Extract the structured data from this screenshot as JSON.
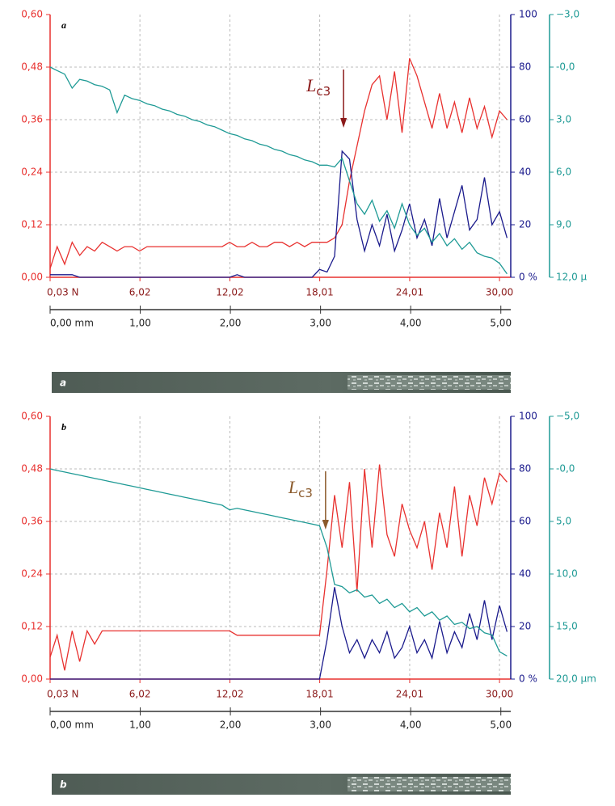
{
  "chart_data": [
    {
      "type": "line",
      "panel_label": "a",
      "strip_label": "a",
      "grid": true,
      "annotation": {
        "label": "L",
        "subscript": "c3",
        "x": 19.6,
        "color": "#8b1a1a"
      },
      "xlim": [
        0.03,
        30.75
      ],
      "xticks": [
        {
          "value": 0.03,
          "label": "0,03 N"
        },
        {
          "value": 6.02,
          "label": "6,02"
        },
        {
          "value": 12.02,
          "label": "12,02"
        },
        {
          "value": 18.01,
          "label": "18,01"
        },
        {
          "value": 24.01,
          "label": "24,01"
        },
        {
          "value": 30.0,
          "label": "30,00"
        }
      ],
      "x2lim": [
        0,
        5.11
      ],
      "x2ticks": [
        {
          "value": 0,
          "label": "0,00 mm"
        },
        {
          "value": 1,
          "label": "1,00"
        },
        {
          "value": 2,
          "label": "2,00"
        },
        {
          "value": 3,
          "label": "3,00"
        },
        {
          "value": 4,
          "label": "4,00"
        },
        {
          "value": 5,
          "label": "5,00"
        }
      ],
      "ylim": [
        0,
        0.6
      ],
      "yticks": [
        {
          "value": 0,
          "label": "0,00"
        },
        {
          "value": 0.12,
          "label": "0,12"
        },
        {
          "value": 0.24,
          "label": "0,24"
        },
        {
          "value": 0.36,
          "label": "0,36"
        },
        {
          "value": 0.48,
          "label": "0,48"
        },
        {
          "value": 0.6,
          "label": "0,60"
        }
      ],
      "y2lim": [
        0,
        100
      ],
      "y2ticks": [
        {
          "value": 0,
          "label": "0 %"
        },
        20,
        40,
        60,
        80,
        100
      ],
      "y3lim": [
        12,
        -3
      ],
      "y3ticks": [
        {
          "value": -3,
          "label": "−3,0"
        },
        {
          "value": 0,
          "label": "-0,0"
        },
        {
          "value": 3,
          "label": "3,0"
        },
        {
          "value": 6,
          "label": "6,0"
        },
        {
          "value": 9,
          "label": "9,0"
        },
        {
          "value": 12,
          "label": "12,0 µ"
        }
      ],
      "axis_colors": {
        "y": "#e8312f",
        "y2": "#1a1a8c",
        "y3": "#1e9a95"
      },
      "x": [
        0.03,
        0.5,
        1,
        1.5,
        2,
        2.5,
        3,
        3.5,
        4,
        4.5,
        5,
        5.5,
        6,
        6.5,
        7,
        7.5,
        8,
        8.5,
        9,
        9.5,
        10,
        10.5,
        11,
        11.5,
        12,
        12.5,
        13,
        13.5,
        14,
        14.5,
        15,
        15.5,
        16,
        16.5,
        17,
        17.5,
        18,
        18.5,
        19,
        19.5,
        20,
        20.5,
        21,
        21.5,
        22,
        22.5,
        23,
        23.5,
        24,
        24.5,
        25,
        25.5,
        26,
        26.5,
        27,
        27.5,
        28,
        28.5,
        29,
        29.5,
        30,
        30.5
      ],
      "series": [
        {
          "color": "#e8312f",
          "axis": "y",
          "values": [
            0.02,
            0.07,
            0.03,
            0.08,
            0.05,
            0.07,
            0.06,
            0.08,
            0.07,
            0.06,
            0.07,
            0.07,
            0.06,
            0.07,
            0.07,
            0.07,
            0.07,
            0.07,
            0.07,
            0.07,
            0.07,
            0.07,
            0.07,
            0.07,
            0.08,
            0.07,
            0.07,
            0.08,
            0.07,
            0.07,
            0.08,
            0.08,
            0.07,
            0.08,
            0.07,
            0.08,
            0.08,
            0.08,
            0.09,
            0.12,
            0.22,
            0.3,
            0.38,
            0.44,
            0.46,
            0.36,
            0.47,
            0.33,
            0.5,
            0.46,
            0.4,
            0.34,
            0.42,
            0.34,
            0.4,
            0.33,
            0.41,
            0.34,
            0.39,
            0.32,
            0.38,
            0.36
          ]
        },
        {
          "color": "#1a1a8c",
          "axis": "y2",
          "values": [
            1,
            1,
            1,
            1,
            0,
            0,
            0,
            0,
            0,
            0,
            0,
            0,
            0,
            0,
            0,
            0,
            0,
            0,
            0,
            0,
            0,
            0,
            0,
            0,
            0,
            1,
            0,
            0,
            0,
            0,
            0,
            0,
            0,
            0,
            0,
            0,
            3,
            2,
            8,
            48,
            45,
            22,
            10,
            20,
            12,
            24,
            10,
            18,
            28,
            15,
            22,
            12,
            30,
            15,
            25,
            35,
            18,
            22,
            38,
            20,
            25,
            15
          ]
        },
        {
          "color": "#1e9a95",
          "axis": "y3",
          "values": [
            0.0,
            0.2,
            0.4,
            1.2,
            0.7,
            0.8,
            1.0,
            1.1,
            1.3,
            2.6,
            1.6,
            1.8,
            1.9,
            2.1,
            2.2,
            2.4,
            2.5,
            2.7,
            2.8,
            3.0,
            3.1,
            3.3,
            3.4,
            3.6,
            3.8,
            3.9,
            4.1,
            4.2,
            4.4,
            4.5,
            4.7,
            4.8,
            5.0,
            5.1,
            5.3,
            5.4,
            5.6,
            5.6,
            5.7,
            5.2,
            6.5,
            7.8,
            8.4,
            7.6,
            8.8,
            8.2,
            9.2,
            7.8,
            9.0,
            9.6,
            9.2,
            10.0,
            9.5,
            10.2,
            9.8,
            10.4,
            10.0,
            10.6,
            10.8,
            10.9,
            11.2,
            11.8
          ]
        }
      ]
    },
    {
      "type": "line",
      "panel_label": "b",
      "strip_label": "b",
      "grid": true,
      "annotation": {
        "label": "L",
        "subscript": "c3",
        "x": 18.4,
        "color": "#8b5a2b"
      },
      "xlim": [
        0.03,
        30.75
      ],
      "xticks": [
        {
          "value": 0.03,
          "label": "0,03 N"
        },
        {
          "value": 6.02,
          "label": "6,02"
        },
        {
          "value": 12.02,
          "label": "12,02"
        },
        {
          "value": 18.01,
          "label": "18,01"
        },
        {
          "value": 24.01,
          "label": "24,01"
        },
        {
          "value": 30.0,
          "label": "30,00"
        }
      ],
      "x2lim": [
        0,
        5.11
      ],
      "x2ticks": [
        {
          "value": 0,
          "label": "0,00 mm"
        },
        {
          "value": 1,
          "label": "1,00"
        },
        {
          "value": 2,
          "label": "2,00"
        },
        {
          "value": 3,
          "label": "3,00"
        },
        {
          "value": 4,
          "label": "4,00"
        },
        {
          "value": 5,
          "label": "5,00"
        }
      ],
      "ylim": [
        0,
        0.6
      ],
      "yticks": [
        {
          "value": 0,
          "label": "0,00"
        },
        {
          "value": 0.12,
          "label": "0,12"
        },
        {
          "value": 0.24,
          "label": "0,24"
        },
        {
          "value": 0.36,
          "label": "0,36"
        },
        {
          "value": 0.48,
          "label": "0,48"
        },
        {
          "value": 0.6,
          "label": "0,60"
        }
      ],
      "y2lim": [
        0,
        100
      ],
      "y2ticks": [
        {
          "value": 0,
          "label": "0 %"
        },
        20,
        40,
        60,
        80,
        100
      ],
      "y3lim": [
        20,
        -5
      ],
      "y3ticks": [
        {
          "value": -5,
          "label": "−5,0"
        },
        {
          "value": 0,
          "label": "-0,0"
        },
        {
          "value": 5,
          "label": "5,0"
        },
        {
          "value": 10,
          "label": "10,0"
        },
        {
          "value": 15,
          "label": "15,0"
        },
        {
          "value": 20,
          "label": "20,0 µm"
        }
      ],
      "axis_colors": {
        "y": "#e8312f",
        "y2": "#1a1a8c",
        "y3": "#1e9a95"
      },
      "x": [
        0.03,
        0.5,
        1,
        1.5,
        2,
        2.5,
        3,
        3.5,
        4,
        4.5,
        5,
        5.5,
        6,
        6.5,
        7,
        7.5,
        8,
        8.5,
        9,
        9.5,
        10,
        10.5,
        11,
        11.5,
        12,
        12.5,
        13,
        13.5,
        14,
        14.5,
        15,
        15.5,
        16,
        16.5,
        17,
        17.5,
        18,
        18.5,
        19,
        19.5,
        20,
        20.5,
        21,
        21.5,
        22,
        22.5,
        23,
        23.5,
        24,
        24.5,
        25,
        25.5,
        26,
        26.5,
        27,
        27.5,
        28,
        28.5,
        29,
        29.5,
        30,
        30.5
      ],
      "series": [
        {
          "color": "#e8312f",
          "axis": "y",
          "values": [
            0.05,
            0.1,
            0.02,
            0.11,
            0.04,
            0.11,
            0.08,
            0.11,
            0.11,
            0.11,
            0.11,
            0.11,
            0.11,
            0.11,
            0.11,
            0.11,
            0.11,
            0.11,
            0.11,
            0.11,
            0.11,
            0.11,
            0.11,
            0.11,
            0.11,
            0.1,
            0.1,
            0.1,
            0.1,
            0.1,
            0.1,
            0.1,
            0.1,
            0.1,
            0.1,
            0.1,
            0.1,
            0.25,
            0.42,
            0.3,
            0.45,
            0.2,
            0.48,
            0.3,
            0.49,
            0.33,
            0.28,
            0.4,
            0.34,
            0.3,
            0.36,
            0.25,
            0.38,
            0.3,
            0.44,
            0.28,
            0.42,
            0.35,
            0.46,
            0.4,
            0.47,
            0.45
          ]
        },
        {
          "color": "#1a1a8c",
          "axis": "y2",
          "values": [
            0,
            0,
            0,
            0,
            0,
            0,
            0,
            0,
            0,
            0,
            0,
            0,
            0,
            0,
            0,
            0,
            0,
            0,
            0,
            0,
            0,
            0,
            0,
            0,
            0,
            0,
            0,
            0,
            0,
            0,
            0,
            0,
            0,
            0,
            0,
            0,
            0,
            15,
            35,
            20,
            10,
            15,
            8,
            15,
            10,
            18,
            8,
            12,
            20,
            10,
            15,
            8,
            22,
            10,
            18,
            12,
            25,
            15,
            30,
            15,
            28,
            18
          ]
        },
        {
          "color": "#1e9a95",
          "axis": "y3",
          "values": [
            0.0,
            0.15,
            0.3,
            0.45,
            0.6,
            0.75,
            0.9,
            1.05,
            1.2,
            1.35,
            1.5,
            1.65,
            1.8,
            1.95,
            2.1,
            2.25,
            2.4,
            2.55,
            2.7,
            2.85,
            3.0,
            3.15,
            3.3,
            3.45,
            3.9,
            3.75,
            3.9,
            4.05,
            4.2,
            4.35,
            4.5,
            4.65,
            4.8,
            4.95,
            5.1,
            5.25,
            5.4,
            7.5,
            11,
            11.2,
            11.8,
            11.5,
            12.2,
            12.0,
            12.8,
            12.4,
            13.2,
            12.8,
            13.6,
            13.2,
            14.0,
            13.6,
            14.4,
            14.0,
            14.8,
            14.6,
            15.2,
            15.0,
            15.6,
            15.8,
            17.4,
            17.8
          ]
        }
      ]
    }
  ]
}
